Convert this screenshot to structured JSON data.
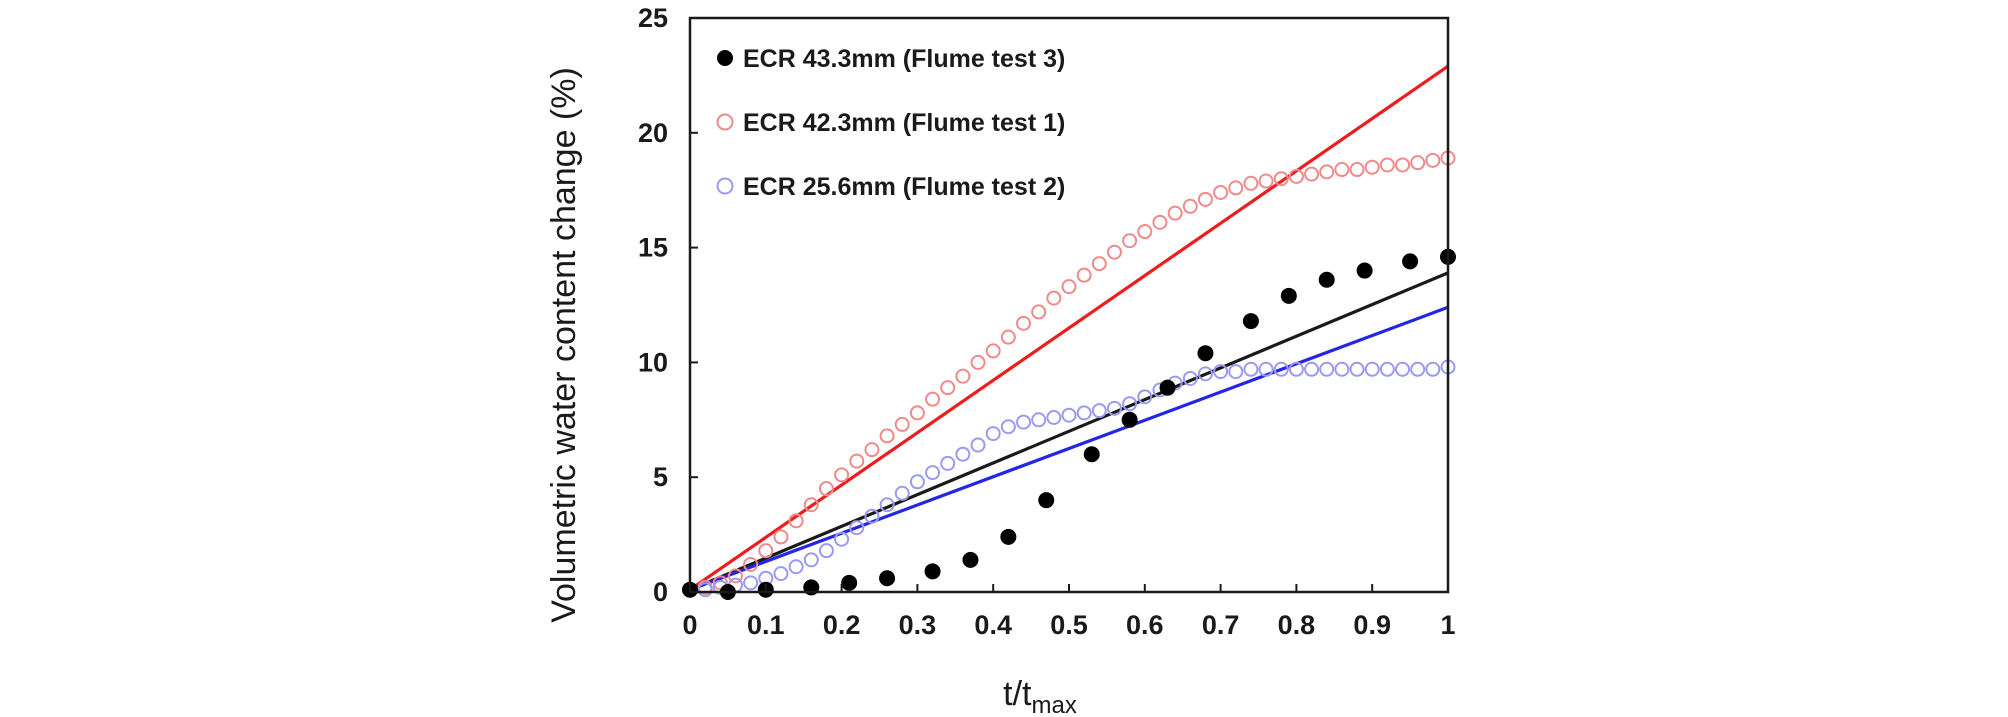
{
  "chart_data": {
    "type": "scatter",
    "title": "",
    "xlabel": "t/t",
    "xlabel_sub": "max",
    "ylabel": "Volumetric water content change (%)",
    "xlim": [
      0,
      1
    ],
    "ylim": [
      0,
      25
    ],
    "xticks": [
      "0",
      "0.1",
      "0.2",
      "0.3",
      "0.4",
      "0.5",
      "0.6",
      "0.7",
      "0.8",
      "0.9",
      "1"
    ],
    "yticks": [
      "0",
      "5",
      "10",
      "15",
      "20",
      "25"
    ],
    "grid": false,
    "legend_position": "top-left",
    "series": [
      {
        "name": "ECR 43.3mm (Flume test 3)",
        "marker": "filled-circle",
        "color": "#000000",
        "x": [
          0.0,
          0.05,
          0.1,
          0.16,
          0.21,
          0.26,
          0.32,
          0.37,
          0.42,
          0.47,
          0.53,
          0.58,
          0.63,
          0.68,
          0.74,
          0.79,
          0.84,
          0.89,
          0.95,
          1.0
        ],
        "y": [
          0.1,
          0.0,
          0.1,
          0.2,
          0.4,
          0.6,
          0.9,
          1.4,
          2.4,
          4.0,
          6.0,
          7.5,
          8.9,
          10.4,
          11.8,
          12.9,
          13.6,
          14.0,
          14.4,
          14.6
        ]
      },
      {
        "name": "ECR 42.3mm (Flume test 1)",
        "marker": "open-circle",
        "color": "#f08a8a",
        "x": [
          0.0,
          0.02,
          0.04,
          0.06,
          0.08,
          0.1,
          0.12,
          0.14,
          0.16,
          0.18,
          0.2,
          0.22,
          0.24,
          0.26,
          0.28,
          0.3,
          0.32,
          0.34,
          0.36,
          0.38,
          0.4,
          0.42,
          0.44,
          0.46,
          0.48,
          0.5,
          0.52,
          0.54,
          0.56,
          0.58,
          0.6,
          0.62,
          0.64,
          0.66,
          0.68,
          0.7,
          0.72,
          0.74,
          0.76,
          0.78,
          0.8,
          0.82,
          0.84,
          0.86,
          0.88,
          0.9,
          0.92,
          0.94,
          0.96,
          0.98,
          1.0
        ],
        "y": [
          0.1,
          0.2,
          0.4,
          0.7,
          1.2,
          1.8,
          2.4,
          3.1,
          3.8,
          4.5,
          5.1,
          5.7,
          6.2,
          6.8,
          7.3,
          7.8,
          8.4,
          8.9,
          9.4,
          10.0,
          10.5,
          11.1,
          11.7,
          12.2,
          12.8,
          13.3,
          13.8,
          14.3,
          14.8,
          15.3,
          15.7,
          16.1,
          16.5,
          16.8,
          17.1,
          17.4,
          17.6,
          17.8,
          17.9,
          18.0,
          18.1,
          18.2,
          18.3,
          18.4,
          18.4,
          18.5,
          18.6,
          18.6,
          18.7,
          18.8,
          18.9
        ]
      },
      {
        "name": "ECR 25.6mm (Flume test 2)",
        "marker": "open-circle",
        "color": "#9a9af0",
        "x": [
          0.0,
          0.02,
          0.04,
          0.06,
          0.08,
          0.1,
          0.12,
          0.14,
          0.16,
          0.18,
          0.2,
          0.22,
          0.24,
          0.26,
          0.28,
          0.3,
          0.32,
          0.34,
          0.36,
          0.38,
          0.4,
          0.42,
          0.44,
          0.46,
          0.48,
          0.5,
          0.52,
          0.54,
          0.56,
          0.58,
          0.6,
          0.62,
          0.64,
          0.66,
          0.68,
          0.7,
          0.72,
          0.74,
          0.76,
          0.78,
          0.8,
          0.82,
          0.84,
          0.86,
          0.88,
          0.9,
          0.92,
          0.94,
          0.96,
          0.98,
          1.0
        ],
        "y": [
          0.1,
          0.1,
          0.2,
          0.3,
          0.4,
          0.6,
          0.8,
          1.1,
          1.4,
          1.8,
          2.3,
          2.8,
          3.3,
          3.8,
          4.3,
          4.8,
          5.2,
          5.6,
          6.0,
          6.4,
          6.9,
          7.2,
          7.4,
          7.5,
          7.6,
          7.7,
          7.8,
          7.9,
          8.0,
          8.2,
          8.5,
          8.8,
          9.1,
          9.3,
          9.5,
          9.6,
          9.6,
          9.7,
          9.7,
          9.7,
          9.7,
          9.7,
          9.7,
          9.7,
          9.7,
          9.7,
          9.7,
          9.7,
          9.7,
          9.7,
          9.8
        ]
      }
    ],
    "trend_lines": [
      {
        "name": "trend-flume-test-1",
        "color": "#ee1c1c",
        "x": [
          0,
          1
        ],
        "y": [
          0.1,
          22.9
        ]
      },
      {
        "name": "trend-flume-test-3",
        "color": "#1a1a1a",
        "x": [
          0,
          1
        ],
        "y": [
          0.1,
          13.9
        ]
      },
      {
        "name": "trend-flume-test-2",
        "color": "#2525e6",
        "x": [
          0,
          1
        ],
        "y": [
          0.1,
          12.4
        ]
      }
    ]
  }
}
